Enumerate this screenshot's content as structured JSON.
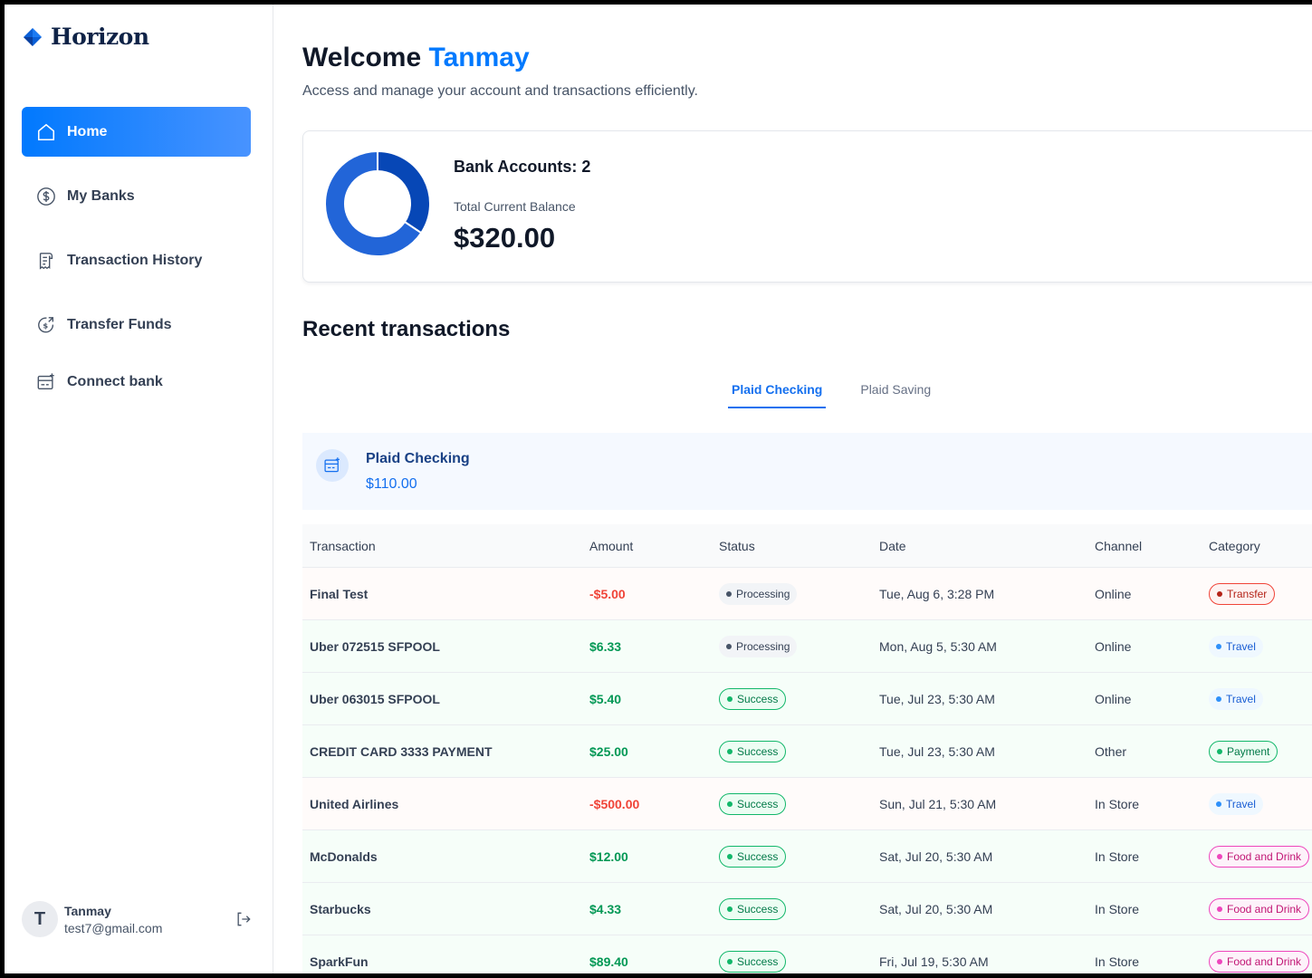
{
  "brand": {
    "name": "Horizon"
  },
  "sidebar": {
    "items": [
      {
        "label": "Home",
        "icon": "home-icon",
        "active": true
      },
      {
        "label": "My Banks",
        "icon": "dollar-circle-icon"
      },
      {
        "label": "Transaction History",
        "icon": "receipt-icon"
      },
      {
        "label": "Transfer Funds",
        "icon": "money-send-icon"
      },
      {
        "label": "Connect bank",
        "icon": "connect-bank-icon"
      }
    ]
  },
  "user": {
    "initial": "T",
    "name": "Tanmay",
    "email": "test7@gmail.com"
  },
  "header": {
    "greeting": "Welcome",
    "name": "Tanmay",
    "subtitle": "Access and manage your account and transactions efficiently."
  },
  "balance": {
    "accounts_label": "Bank Accounts: 2",
    "total_label": "Total Current Balance",
    "total_value": "$320.00"
  },
  "chart_data": {
    "type": "pie",
    "donut": true,
    "values": [
      110,
      210
    ],
    "colors": [
      "#0747b6",
      "#2265d8"
    ]
  },
  "recent": {
    "title": "Recent transactions",
    "tabs": [
      {
        "label": "Plaid Checking",
        "active": true
      },
      {
        "label": "Plaid Saving",
        "active": false
      }
    ],
    "bank": {
      "name": "Plaid Checking",
      "amount": "$110.00"
    }
  },
  "table": {
    "headers": {
      "transaction": "Transaction",
      "amount": "Amount",
      "status": "Status",
      "date": "Date",
      "channel": "Channel",
      "category": "Category"
    },
    "rows": [
      {
        "name": "Final Test",
        "amount": "-$5.00",
        "type": "debit",
        "status": "Processing",
        "date": "Tue, Aug 6, 3:28 PM",
        "channel": "Online",
        "category": "Transfer",
        "cat_class": "cat-transfer"
      },
      {
        "name": "Uber 072515 SFPOOL",
        "amount": "$6.33",
        "type": "credit",
        "status": "Processing",
        "date": "Mon, Aug 5, 5:30 AM",
        "channel": "Online",
        "category": "Travel",
        "cat_class": "cat-travel"
      },
      {
        "name": "Uber 063015 SFPOOL",
        "amount": "$5.40",
        "type": "credit",
        "status": "Success",
        "date": "Tue, Jul 23, 5:30 AM",
        "channel": "Online",
        "category": "Travel",
        "cat_class": "cat-travel"
      },
      {
        "name": "CREDIT CARD 3333 PAYMENT",
        "amount": "$25.00",
        "type": "credit",
        "status": "Success",
        "date": "Tue, Jul 23, 5:30 AM",
        "channel": "Other",
        "category": "Payment",
        "cat_class": "cat-payment"
      },
      {
        "name": "United Airlines",
        "amount": "-$500.00",
        "type": "debit",
        "status": "Success",
        "date": "Sun, Jul 21, 5:30 AM",
        "channel": "In Store",
        "category": "Travel",
        "cat_class": "cat-travel"
      },
      {
        "name": "McDonalds",
        "amount": "$12.00",
        "type": "credit",
        "status": "Success",
        "date": "Sat, Jul 20, 5:30 AM",
        "channel": "In Store",
        "category": "Food and Drink",
        "cat_class": "cat-food"
      },
      {
        "name": "Starbucks",
        "amount": "$4.33",
        "type": "credit",
        "status": "Success",
        "date": "Sat, Jul 20, 5:30 AM",
        "channel": "In Store",
        "category": "Food and Drink",
        "cat_class": "cat-food"
      },
      {
        "name": "SparkFun",
        "amount": "$89.40",
        "type": "credit",
        "status": "Success",
        "date": "Fri, Jul 19, 5:30 AM",
        "channel": "In Store",
        "category": "Food and Drink",
        "cat_class": "cat-food"
      }
    ]
  }
}
